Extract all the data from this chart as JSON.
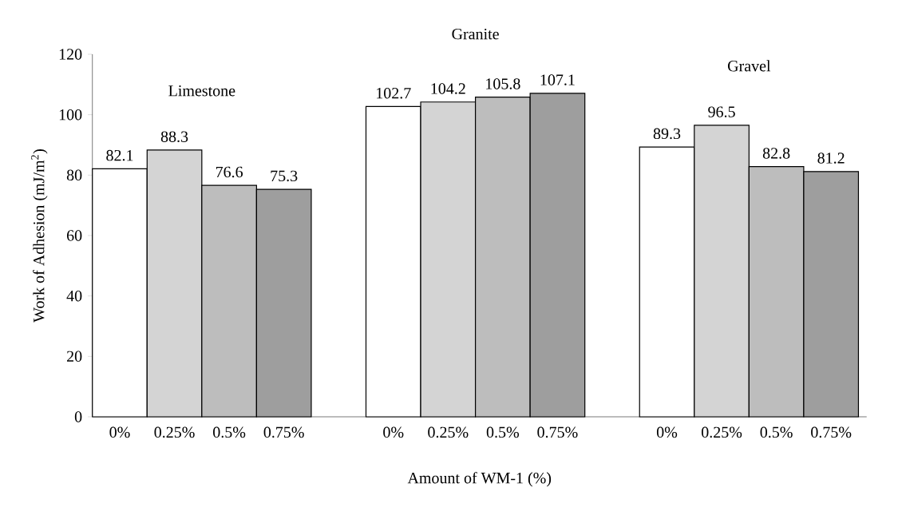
{
  "chart_data": {
    "type": "bar",
    "ylabel": "Work of Adhesion (mJ/m$^{2}$)",
    "xlabel": "Amount of WM-1 (%)",
    "categories": [
      "0%",
      "0.25%",
      "0.5%",
      "0.75%",
      "0%",
      "0.25%",
      "0.5%",
      "0.75%",
      "0%",
      "0.25%",
      "0.5%",
      "0.75%"
    ],
    "values": [
      82.1,
      88.3,
      76.6,
      75.3,
      102.7,
      104.2,
      105.8,
      107.1,
      89.3,
      96.5,
      82.8,
      81.2
    ],
    "colors": [
      "#ffffff",
      "#d4d4d4",
      "#bdbdbd",
      "#9e9e9e",
      "#ffffff",
      "#d4d4d4",
      "#bdbdbd",
      "#9e9e9e",
      "#ffffff",
      "#d4d4d4",
      "#bdbdbd",
      "#9e9e9e"
    ],
    "ylim": [
      0,
      120
    ],
    "yticks": [
      0,
      20,
      40,
      60,
      80,
      100,
      120
    ],
    "data_labels": true,
    "annotations": [
      "Limestone",
      "Granite",
      "Gravel"
    ]
  }
}
